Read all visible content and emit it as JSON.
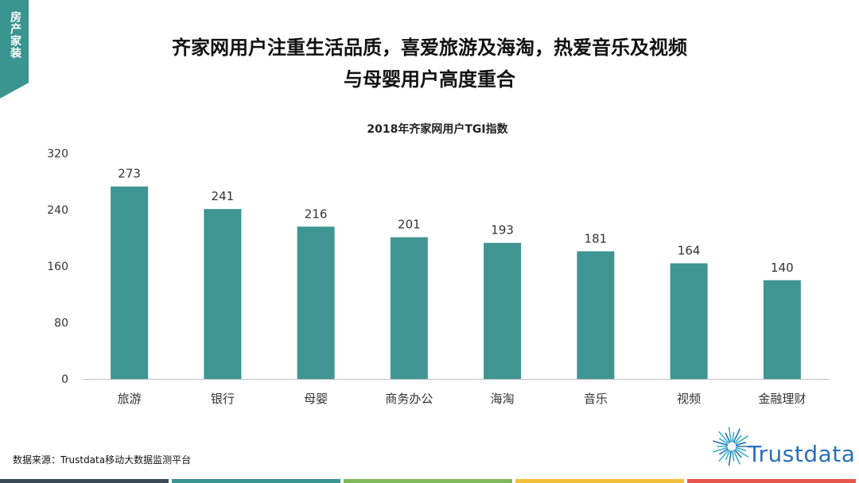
{
  "side_tab": {
    "label": "房产家装",
    "color": "#3a9490"
  },
  "headline": {
    "line1": "齐家网用户注重生活品质，喜爱旅游及海淘，热爱音乐及视频",
    "line2": "与母婴用户高度重合"
  },
  "chart_data": {
    "type": "bar",
    "title": "2018年齐家网用户TGI指数",
    "xlabel": "",
    "ylabel": "",
    "categories": [
      "旅游",
      "银行",
      "母婴",
      "商务办公",
      "海淘",
      "音乐",
      "视频",
      "金融理财"
    ],
    "values": [
      273,
      241,
      216,
      201,
      193,
      181,
      164,
      140
    ],
    "ylim": [
      0,
      320
    ],
    "yticks": [
      0,
      80,
      160,
      240,
      320
    ],
    "grid": false,
    "bar_color": "#3f9592",
    "data_labels": true
  },
  "source": "数据来源：Trustdata移动大数据监测平台",
  "logo": {
    "text": "Trustdata",
    "icon": "sunburst-icon",
    "color": "#2a6fb8"
  },
  "footer_colors": [
    "#3a4a57",
    "#3a9490",
    "#7fb85a",
    "#f2bf3a",
    "#e8554a"
  ]
}
